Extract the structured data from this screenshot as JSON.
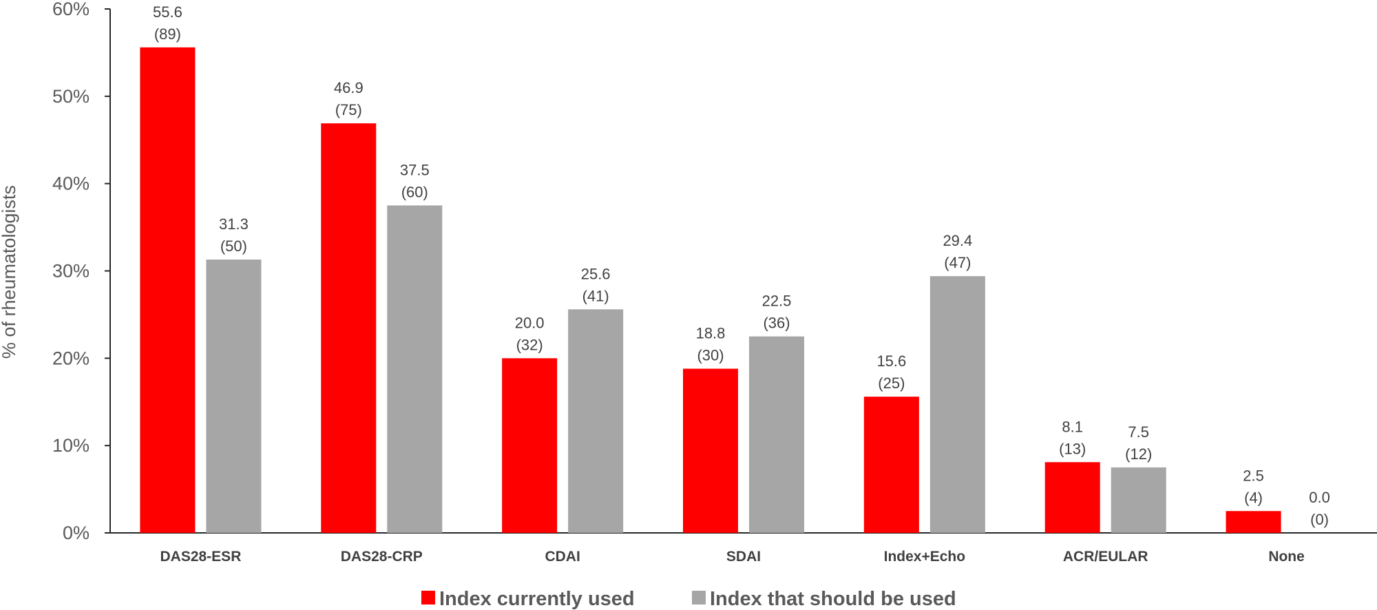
{
  "chart_data": {
    "type": "bar",
    "categories": [
      "DAS28-ESR",
      "DAS28-CRP",
      "CDAI",
      "SDAI",
      "Index+Echo",
      "ACR/EULAR",
      "None"
    ],
    "series": [
      {
        "name": "Index currently used",
        "color": "#ff0000",
        "values": [
          55.6,
          46.9,
          20.0,
          18.8,
          15.6,
          8.1,
          2.5
        ],
        "value_labels": [
          "55.6",
          "46.9",
          "20.0",
          "18.8",
          "15.6",
          "8.1",
          "2.5"
        ],
        "count_labels": [
          "(89)",
          "(75)",
          "(32)",
          "(30)",
          "(25)",
          "(13)",
          "(4)"
        ]
      },
      {
        "name": "Index that should be used",
        "color": "#a6a6a6",
        "values": [
          31.3,
          37.5,
          25.6,
          22.5,
          29.4,
          7.5,
          0.0
        ],
        "value_labels": [
          "31.3",
          "37.5",
          "25.6",
          "22.5",
          "29.4",
          "7.5",
          "0.0"
        ],
        "count_labels": [
          "(50)",
          "(60)",
          "(41)",
          "(36)",
          "(47)",
          "(12)",
          "(0)"
        ]
      }
    ],
    "ylabel": "% of rheumatologists",
    "ylim": [
      0,
      60
    ],
    "yticks": [
      0,
      10,
      20,
      30,
      40,
      50,
      60
    ],
    "ytick_labels": [
      "0%",
      "10%",
      "20%",
      "30%",
      "40%",
      "50%",
      "60%"
    ],
    "grid": false,
    "legend_position": "bottom"
  }
}
